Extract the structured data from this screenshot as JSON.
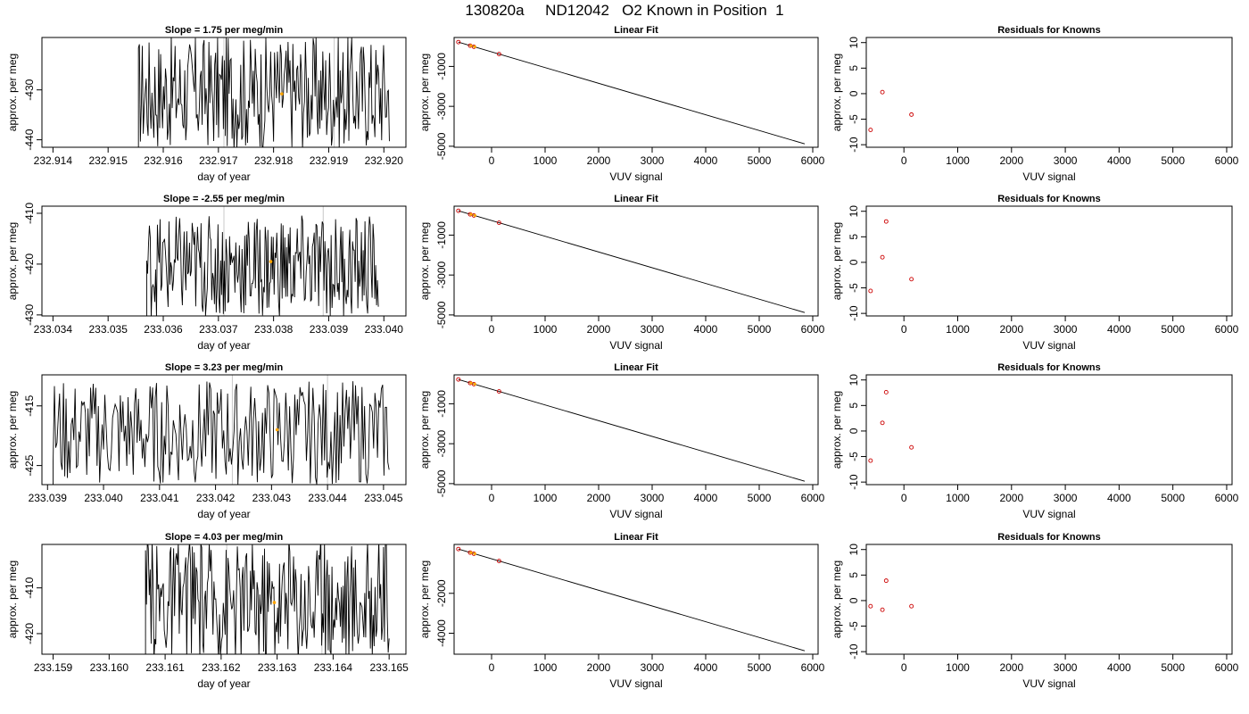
{
  "page": {
    "title": "130820a     ND12042   O2 Known in Position  1"
  },
  "colors": {
    "trace": "#000000",
    "marker": "#ffa500",
    "fit_point": "#cc0000",
    "residual": "#cc0000",
    "guide": "#c8c8c8"
  },
  "chart_data": [
    {
      "type": "line",
      "row": 0,
      "panel": "time-series",
      "title": "Slope =  1.75  per meg/min",
      "xlabel": "day of year",
      "ylabel": "approx. per meg",
      "xlim": [
        232.9138,
        232.9204
      ],
      "ylim": [
        -441.5,
        -419.5
      ],
      "xticks": [
        232.914,
        232.915,
        232.916,
        232.917,
        232.918,
        232.919,
        232.92
      ],
      "xtick_labels": [
        "232.914",
        "232.915",
        "232.916",
        "232.917",
        "232.918",
        "232.919",
        "232.920"
      ],
      "yticks": [
        -430,
        -440
      ],
      "ytick_labels": [
        "-430",
        "-440"
      ],
      "series_start": 232.91555,
      "series_end": 232.9201,
      "guides": [
        232.9171,
        232.9191
      ],
      "marker": {
        "x": 232.91815,
        "y": -430.8
      },
      "center": -430.5,
      "amplitude": 8.5
    },
    {
      "type": "line",
      "row": 0,
      "panel": "linear-fit",
      "title": "Linear Fit",
      "xlabel": "VUV signal",
      "ylabel": "approx. per meg",
      "xlim": [
        -700,
        6100
      ],
      "ylim": [
        -5050,
        450
      ],
      "xticks": [
        0,
        1000,
        2000,
        3000,
        4000,
        5000,
        6000
      ],
      "xtick_labels": [
        "0",
        "1000",
        "2000",
        "3000",
        "4000",
        "5000",
        "6000"
      ],
      "yticks": [
        -1000,
        -3000,
        -5000
      ],
      "ytick_labels": [
        "-1000",
        "-3000",
        "-5000"
      ],
      "line": [
        [
          -620,
          220
        ],
        [
          5850,
          -4880
        ]
      ],
      "points": [
        [
          -620,
          220
        ],
        [
          -400,
          40
        ],
        [
          -330,
          -15
        ],
        [
          140,
          -380
        ]
      ],
      "marker_points": [
        [
          -400,
          40
        ],
        [
          -330,
          -15
        ]
      ]
    },
    {
      "type": "scatter",
      "row": 0,
      "panel": "residuals",
      "title": "Residuals for Knowns",
      "xlabel": "VUV signal",
      "ylabel": "approx. per meg",
      "xlim": [
        -700,
        6100
      ],
      "ylim": [
        -10.5,
        11
      ],
      "xticks": [
        0,
        1000,
        2000,
        3000,
        4000,
        5000,
        6000
      ],
      "xtick_labels": [
        "0",
        "1000",
        "2000",
        "3000",
        "4000",
        "5000",
        "6000"
      ],
      "yticks": [
        10,
        5,
        0,
        -5,
        -10
      ],
      "ytick_labels": [
        "10",
        "5",
        "0",
        "-5",
        "-10"
      ],
      "points": [
        [
          -620,
          -7.1
        ],
        [
          -400,
          0.3
        ],
        [
          140,
          -4.1
        ]
      ]
    },
    {
      "type": "line",
      "row": 1,
      "panel": "time-series",
      "title": "Slope =  -2.55  per meg/min",
      "xlabel": "day of year",
      "ylabel": "approx. per meg",
      "xlim": [
        233.0338,
        233.0404
      ],
      "ylim": [
        -430.2,
        -408.6
      ],
      "xticks": [
        233.034,
        233.035,
        233.036,
        233.037,
        233.038,
        233.039,
        233.04
      ],
      "xtick_labels": [
        "233.034",
        "233.035",
        "233.036",
        "233.037",
        "233.038",
        "233.039",
        "233.040"
      ],
      "yticks": [
        -410,
        -420,
        -430
      ],
      "ytick_labels": [
        "-410",
        "-420",
        "-430"
      ],
      "series_start": 233.0357,
      "series_end": 233.0399,
      "guides": [
        233.0371,
        233.0389
      ],
      "marker": {
        "x": 233.03795,
        "y": -419.5
      },
      "center": -420.5,
      "amplitude": 7.5
    },
    {
      "type": "line",
      "row": 1,
      "panel": "linear-fit",
      "title": "Linear Fit",
      "xlabel": "VUV signal",
      "ylabel": "approx. per meg",
      "xlim": [
        -700,
        6100
      ],
      "ylim": [
        -5050,
        450
      ],
      "xticks": [
        0,
        1000,
        2000,
        3000,
        4000,
        5000,
        6000
      ],
      "xtick_labels": [
        "0",
        "1000",
        "2000",
        "3000",
        "4000",
        "5000",
        "6000"
      ],
      "yticks": [
        -1000,
        -3000,
        -5000
      ],
      "ytick_labels": [
        "-1000",
        "-3000",
        "-5000"
      ],
      "line": [
        [
          -620,
          220
        ],
        [
          5850,
          -4880
        ]
      ],
      "points": [
        [
          -620,
          220
        ],
        [
          -400,
          40
        ],
        [
          -330,
          -15
        ],
        [
          140,
          -380
        ]
      ],
      "marker_points": [
        [
          -400,
          40
        ],
        [
          -330,
          -15
        ]
      ]
    },
    {
      "type": "scatter",
      "row": 1,
      "panel": "residuals",
      "title": "Residuals for Knowns",
      "xlabel": "VUV signal",
      "ylabel": "approx. per meg",
      "xlim": [
        -700,
        6100
      ],
      "ylim": [
        -10.5,
        11
      ],
      "xticks": [
        0,
        1000,
        2000,
        3000,
        4000,
        5000,
        6000
      ],
      "xtick_labels": [
        "0",
        "1000",
        "2000",
        "3000",
        "4000",
        "5000",
        "6000"
      ],
      "yticks": [
        10,
        5,
        0,
        -5,
        -10
      ],
      "ytick_labels": [
        "10",
        "5",
        "0",
        "-5",
        "-10"
      ],
      "points": [
        [
          -620,
          -5.6
        ],
        [
          -400,
          1.0
        ],
        [
          -330,
          8.0
        ],
        [
          140,
          -3.3
        ]
      ]
    },
    {
      "type": "line",
      "row": 2,
      "panel": "time-series",
      "title": "Slope =  3.23  per meg/min",
      "xlabel": "day of year",
      "ylabel": "approx. per meg",
      "xlim": [
        233.0389,
        233.0454
      ],
      "ylim": [
        -428.2,
        -409.8
      ],
      "xticks": [
        233.039,
        233.04,
        233.041,
        233.042,
        233.043,
        233.044,
        233.045
      ],
      "xtick_labels": [
        "233.039",
        "233.040",
        "233.041",
        "233.042",
        "233.043",
        "233.044",
        "233.045"
      ],
      "yticks": [
        -415,
        -425
      ],
      "ytick_labels": [
        "-415",
        "-425"
      ],
      "series_start": 233.0391,
      "series_end": 233.0451,
      "guides": [
        233.0423,
        233.044
      ],
      "marker": {
        "x": 233.0431,
        "y": -419.0
      },
      "center": -419.5,
      "amplitude": 6.5
    },
    {
      "type": "line",
      "row": 2,
      "panel": "linear-fit",
      "title": "Linear Fit",
      "xlabel": "VUV signal",
      "ylabel": "approx. per meg",
      "xlim": [
        -700,
        6100
      ],
      "ylim": [
        -5050,
        450
      ],
      "xticks": [
        0,
        1000,
        2000,
        3000,
        4000,
        5000,
        6000
      ],
      "xtick_labels": [
        "0",
        "1000",
        "2000",
        "3000",
        "4000",
        "5000",
        "6000"
      ],
      "yticks": [
        -1000,
        -3000,
        -5000
      ],
      "ytick_labels": [
        "-1000",
        "-3000",
        "-5000"
      ],
      "line": [
        [
          -620,
          220
        ],
        [
          5850,
          -4880
        ]
      ],
      "points": [
        [
          -620,
          220
        ],
        [
          -400,
          40
        ],
        [
          -330,
          -15
        ],
        [
          140,
          -380
        ]
      ],
      "marker_points": [
        [
          -400,
          40
        ],
        [
          -330,
          -15
        ]
      ]
    },
    {
      "type": "scatter",
      "row": 2,
      "panel": "residuals",
      "title": "Residuals for Knowns",
      "xlabel": "VUV signal",
      "ylabel": "approx. per meg",
      "xlim": [
        -700,
        6100
      ],
      "ylim": [
        -10.5,
        11
      ],
      "xticks": [
        0,
        1000,
        2000,
        3000,
        4000,
        5000,
        6000
      ],
      "xtick_labels": [
        "0",
        "1000",
        "2000",
        "3000",
        "4000",
        "5000",
        "6000"
      ],
      "yticks": [
        10,
        5,
        0,
        -5,
        -10
      ],
      "ytick_labels": [
        "10",
        "5",
        "0",
        "-5",
        "-10"
      ],
      "points": [
        [
          -620,
          -5.8
        ],
        [
          -400,
          1.6
        ],
        [
          -330,
          7.6
        ],
        [
          140,
          -3.2
        ]
      ]
    },
    {
      "type": "line",
      "row": 3,
      "panel": "time-series",
      "title": "Slope =  4.03  per meg/min",
      "xlabel": "day of year",
      "ylabel": "approx. per meg",
      "xlim": [
        233.1588,
        233.1653
      ],
      "ylim": [
        -424.5,
        -400.5
      ],
      "xticks": [
        233.159,
        233.16,
        233.161,
        233.162,
        233.163,
        233.164,
        233.165
      ],
      "xtick_labels": [
        "233.159",
        "233.160",
        "233.161",
        "233.162",
        "233.163",
        "233.164",
        "233.165"
      ],
      "yticks": [
        -410,
        -420
      ],
      "ytick_labels": [
        "-410",
        "-420"
      ],
      "series_start": 233.16065,
      "series_end": 233.165,
      "guides": [
        233.1621,
        233.1638
      ],
      "marker": {
        "x": 233.16295,
        "y": -413.2
      },
      "center": -412.5,
      "amplitude": 10
    },
    {
      "type": "line",
      "row": 3,
      "panel": "linear-fit",
      "title": "Linear Fit",
      "xlabel": "VUV signal",
      "ylabel": "approx. per meg",
      "xlim": [
        -700,
        6100
      ],
      "ylim": [
        -5050,
        450
      ],
      "xticks": [
        0,
        1000,
        2000,
        3000,
        4000,
        5000,
        6000
      ],
      "xtick_labels": [
        "0",
        "1000",
        "2000",
        "3000",
        "4000",
        "5000",
        "6000"
      ],
      "yticks": [
        -2000,
        -4000
      ],
      "ytick_labels": [
        "-2000",
        "-4000"
      ],
      "line": [
        [
          -620,
          220
        ],
        [
          5850,
          -4880
        ]
      ],
      "points": [
        [
          -620,
          220
        ],
        [
          -400,
          40
        ],
        [
          -330,
          -15
        ],
        [
          140,
          -380
        ]
      ],
      "marker_points": [
        [
          -400,
          40
        ],
        [
          -330,
          -15
        ]
      ]
    },
    {
      "type": "scatter",
      "row": 3,
      "panel": "residuals",
      "title": "Residuals for Knowns",
      "xlabel": "VUV signal",
      "ylabel": "approx. per meg",
      "xlim": [
        -700,
        6100
      ],
      "ylim": [
        -10.5,
        11
      ],
      "xticks": [
        0,
        1000,
        2000,
        3000,
        4000,
        5000,
        6000
      ],
      "xtick_labels": [
        "0",
        "1000",
        "2000",
        "3000",
        "4000",
        "5000",
        "6000"
      ],
      "yticks": [
        10,
        5,
        0,
        -5,
        -10
      ],
      "ytick_labels": [
        "10",
        "5",
        "0",
        "-5",
        "-10"
      ],
      "points": [
        [
          -620,
          -1.1
        ],
        [
          -400,
          -1.8
        ],
        [
          -330,
          3.9
        ],
        [
          140,
          -1.1
        ]
      ]
    }
  ]
}
